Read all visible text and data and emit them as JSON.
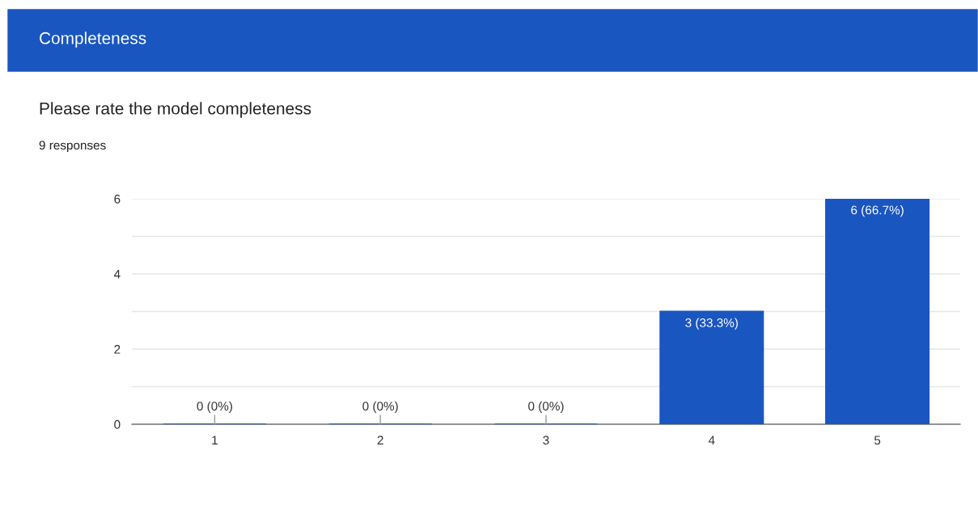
{
  "chart_data": {
    "type": "bar",
    "title": "Completeness",
    "subtitle": "Please rate the model completeness",
    "annotations": [
      "9 responses"
    ],
    "categories": [
      "1",
      "2",
      "3",
      "4",
      "5"
    ],
    "values": [
      0,
      0,
      0,
      3,
      6
    ],
    "value_labels": [
      "0 (0%)",
      "0 (0%)",
      "0 (0%)",
      "3 (33.3%)",
      "6 (66.7%)"
    ],
    "color": "#1a56c0",
    "ylim": [
      0,
      6
    ],
    "yticks": [
      0,
      {
        "value": 1,
        "label": null
      },
      2,
      {
        "value": 3,
        "label": null
      },
      4,
      {
        "value": 5,
        "label": null
      },
      6
    ],
    "grid": "y",
    "legend": false
  }
}
